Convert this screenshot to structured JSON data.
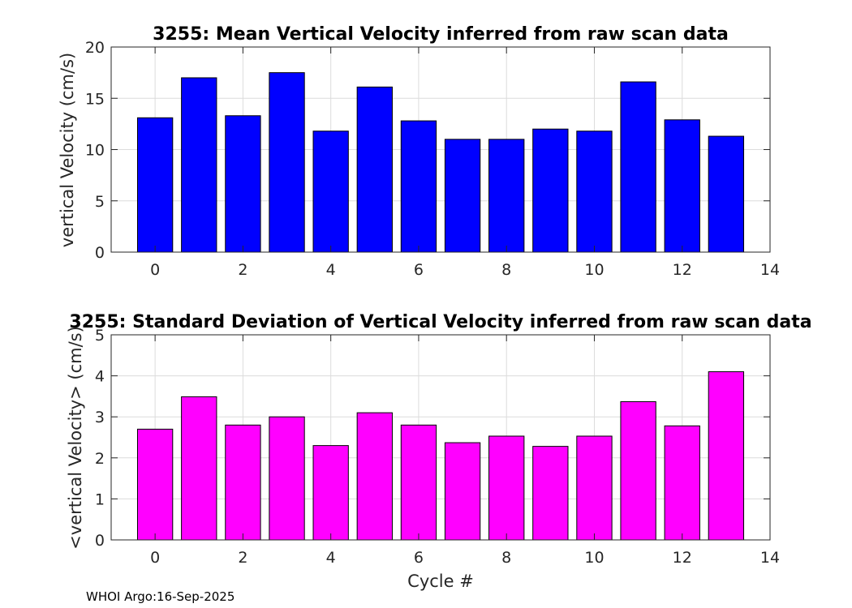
{
  "chart_data": [
    {
      "type": "bar",
      "title": "3255: Mean Vertical Velocity inferred from raw scan data",
      "xlabel": "",
      "ylabel": "vertical Velocity (cm/s)",
      "x": [
        0,
        1,
        2,
        3,
        4,
        5,
        6,
        7,
        8,
        9,
        10,
        11,
        12,
        13
      ],
      "values": [
        13.1,
        17.0,
        13.3,
        17.5,
        11.8,
        16.1,
        12.8,
        11.0,
        11.0,
        12.0,
        11.8,
        16.6,
        12.9,
        11.3
      ],
      "xlim": [
        -1,
        14
      ],
      "ylim": [
        0,
        20
      ],
      "xticks": [
        0,
        2,
        4,
        6,
        8,
        10,
        12,
        14
      ],
      "yticks": [
        0,
        5,
        10,
        15,
        20
      ],
      "bar_color": "#0000ff",
      "grid": true
    },
    {
      "type": "bar",
      "title": "3255: Standard Deviation of Vertical Velocity inferred from raw scan data",
      "xlabel": "Cycle #",
      "ylabel": "<vertical Velocity> (cm/s)",
      "x": [
        0,
        1,
        2,
        3,
        4,
        5,
        6,
        7,
        8,
        9,
        10,
        11,
        12,
        13
      ],
      "values": [
        2.7,
        3.49,
        2.8,
        3.0,
        2.3,
        3.1,
        2.8,
        2.37,
        2.53,
        2.28,
        2.53,
        3.37,
        2.78,
        4.1
      ],
      "xlim": [
        -1,
        14
      ],
      "ylim": [
        0,
        5
      ],
      "xticks": [
        0,
        2,
        4,
        6,
        8,
        10,
        12,
        14
      ],
      "yticks": [
        0,
        1,
        2,
        3,
        4,
        5
      ],
      "bar_color": "#ff00ff",
      "grid": true
    }
  ],
  "footer": "WHOI Argo:16-Sep-2025"
}
